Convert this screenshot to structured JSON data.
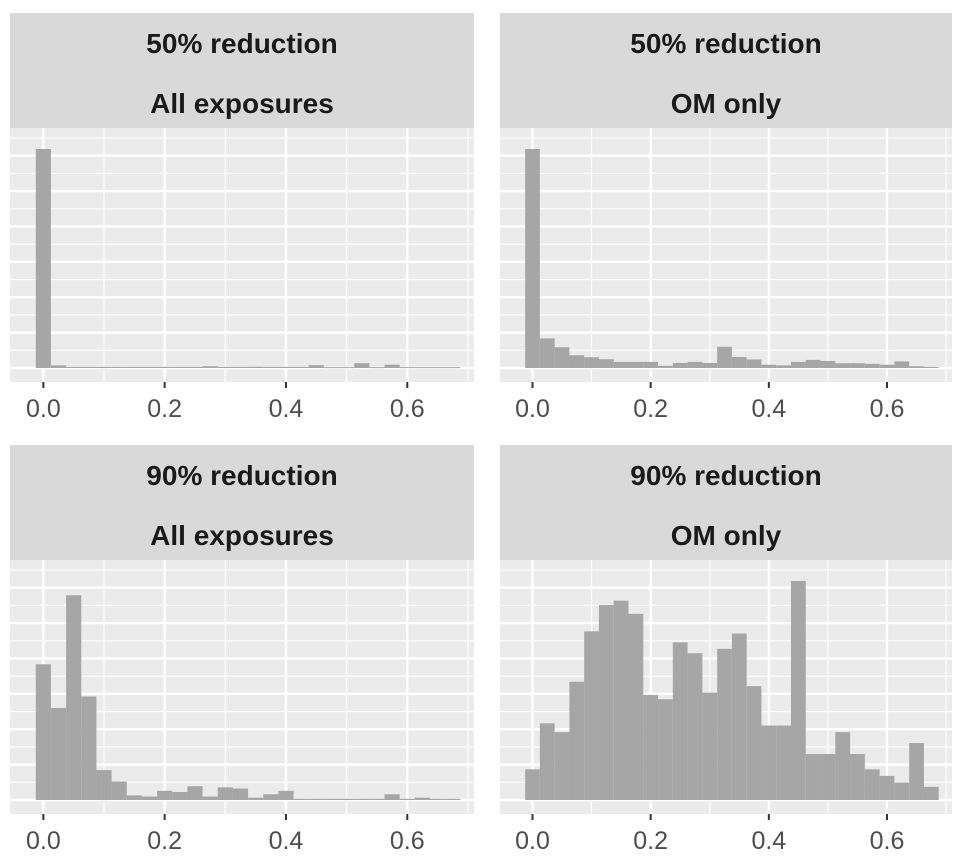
{
  "chart_data": [
    {
      "type": "bar",
      "strip": [
        "50% reduction",
        "All exposures"
      ],
      "bin_width": 0.025,
      "bin_centers": [
        0.0,
        0.025,
        0.05,
        0.075,
        0.1,
        0.125,
        0.15,
        0.175,
        0.2,
        0.225,
        0.25,
        0.275,
        0.3,
        0.325,
        0.35,
        0.375,
        0.4,
        0.425,
        0.45,
        0.475,
        0.5,
        0.525,
        0.55,
        0.575,
        0.6,
        0.625,
        0.65,
        0.675
      ],
      "values": [
        100,
        1.2,
        0.5,
        0.5,
        0.5,
        0.5,
        0.5,
        0.5,
        0.5,
        0.5,
        0.5,
        0.8,
        0.5,
        0.5,
        0.6,
        0.5,
        0.5,
        0.5,
        1.3,
        0.4,
        0.4,
        2.2,
        0.4,
        1.5,
        0.4,
        0.4,
        0.4,
        0.4
      ],
      "xlim": [
        -0.055,
        0.71
      ],
      "ylim": [
        0,
        105
      ],
      "x_ticks": [
        "0.0",
        "0.2",
        "0.4",
        "0.6"
      ]
    },
    {
      "type": "bar",
      "strip": [
        "50% reduction",
        "OM only"
      ],
      "bin_width": 0.025,
      "bin_centers": [
        0.0,
        0.025,
        0.05,
        0.075,
        0.1,
        0.125,
        0.15,
        0.175,
        0.2,
        0.225,
        0.25,
        0.275,
        0.3,
        0.325,
        0.35,
        0.375,
        0.4,
        0.425,
        0.45,
        0.475,
        0.5,
        0.525,
        0.55,
        0.575,
        0.6,
        0.625,
        0.65,
        0.675
      ],
      "values": [
        100,
        13.5,
        9.5,
        5.8,
        4.9,
        4.0,
        2.8,
        2.8,
        2.8,
        1.0,
        2.3,
        2.8,
        2.3,
        9.7,
        5.0,
        3.9,
        1.5,
        1.2,
        2.8,
        3.7,
        3.2,
        2.2,
        2.2,
        1.9,
        1.5,
        3.0,
        0.8,
        0.5
      ],
      "xlim": [
        -0.055,
        0.71
      ],
      "ylim": [
        0,
        105
      ],
      "x_ticks": [
        "0.0",
        "0.2",
        "0.4",
        "0.6"
      ]
    },
    {
      "type": "bar",
      "strip": [
        "90% reduction",
        "All exposures"
      ],
      "bin_width": 0.025,
      "bin_centers": [
        0.0,
        0.025,
        0.05,
        0.075,
        0.1,
        0.125,
        0.15,
        0.175,
        0.2,
        0.225,
        0.25,
        0.275,
        0.3,
        0.325,
        0.35,
        0.375,
        0.4,
        0.425,
        0.45,
        0.475,
        0.5,
        0.525,
        0.55,
        0.575,
        0.6,
        0.625,
        0.65,
        0.675
      ],
      "values": [
        59,
        40,
        89,
        45,
        13,
        8,
        2,
        1.5,
        4,
        3.5,
        6,
        1.5,
        5.5,
        5,
        1,
        2.5,
        4,
        0.5,
        0.5,
        0.5,
        0.5,
        0.5,
        0.5,
        2.5,
        0.5,
        1,
        0.5,
        0.5
      ],
      "xlim": [
        -0.055,
        0.71
      ],
      "ylim": [
        0,
        100
      ],
      "x_ticks": [
        "0.0",
        "0.2",
        "0.4",
        "0.6"
      ]
    },
    {
      "type": "bar",
      "strip": [
        "90% reduction",
        "OM only"
      ],
      "bin_width": 0.025,
      "bin_centers": [
        0.0,
        0.025,
        0.05,
        0.075,
        0.1,
        0.125,
        0.15,
        0.175,
        0.2,
        0.225,
        0.25,
        0.275,
        0.3,
        0.325,
        0.35,
        0.375,
        0.4,
        0.425,
        0.45,
        0.475,
        0.5,
        0.525,
        0.55,
        0.575,
        0.6,
        0.625,
        0.65,
        0.675
      ],
      "values": [
        14,
        35,
        31,
        54,
        77,
        89,
        91,
        85,
        48,
        46,
        72,
        67,
        49,
        69,
        76,
        52,
        34,
        34,
        100,
        21,
        21,
        31,
        21,
        14,
        11,
        8,
        26,
        6
      ],
      "xlim": [
        -0.055,
        0.71
      ],
      "ylim": [
        0,
        105
      ],
      "x_ticks": [
        "0.0",
        "0.2",
        "0.4",
        "0.6"
      ]
    }
  ],
  "colors": {
    "bar": "#a6a6a6",
    "panel_bg": "#ebebeb",
    "strip_bg": "#d9d9d9",
    "grid": "#ffffff",
    "strip_text": "#1a1a1a",
    "tick_text": "#4d4d4d",
    "tick_mark": "#333333"
  }
}
